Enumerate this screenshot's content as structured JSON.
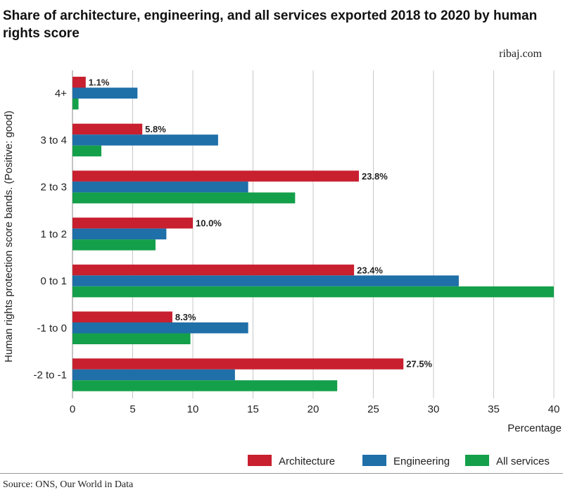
{
  "header": {
    "title": "Share of architecture, engineering, and all services exported 2018 to 2020 by human rights score",
    "brand": "ribaj.com"
  },
  "footer": {
    "source": "Source: ONS, Our World in Data"
  },
  "colors": {
    "architecture": "#c8202f",
    "engineering": "#1f6fa8",
    "all_services": "#14a04a",
    "grid": "#c8c8c8"
  },
  "chart_data": {
    "type": "bar",
    "orientation": "horizontal",
    "title": "Share of architecture, engineering, and all services exported 2018 to 2020 by human rights score",
    "xlabel": "Percentage",
    "ylabel": "Human rights protection score bands. (Positive: good)",
    "xlim": [
      0,
      40
    ],
    "xticks": [
      0,
      5,
      10,
      15,
      20,
      25,
      30,
      35,
      40
    ],
    "grid": true,
    "legend_position": "bottom-right",
    "categories": [
      "4+",
      "3 to 4",
      "2 to 3",
      "1 to 2",
      "0 to 1",
      "-1 to 0",
      "-2 to -1"
    ],
    "series": [
      {
        "name": "Architecture",
        "color": "#c8202f",
        "values": [
          1.1,
          5.8,
          23.8,
          10.0,
          23.4,
          8.3,
          27.5
        ],
        "labels": [
          "1.1%",
          "5.8%",
          "23.8%",
          "10.0%",
          "23.4%",
          "8.3%",
          "27.5%"
        ]
      },
      {
        "name": "Engineering",
        "color": "#1f6fa8",
        "values": [
          5.4,
          12.1,
          14.6,
          7.8,
          32.1,
          14.6,
          13.5
        ]
      },
      {
        "name": "All services",
        "color": "#14a04a",
        "values": [
          0.5,
          2.4,
          18.5,
          6.9,
          40.0,
          9.8,
          22.0
        ]
      }
    ]
  }
}
